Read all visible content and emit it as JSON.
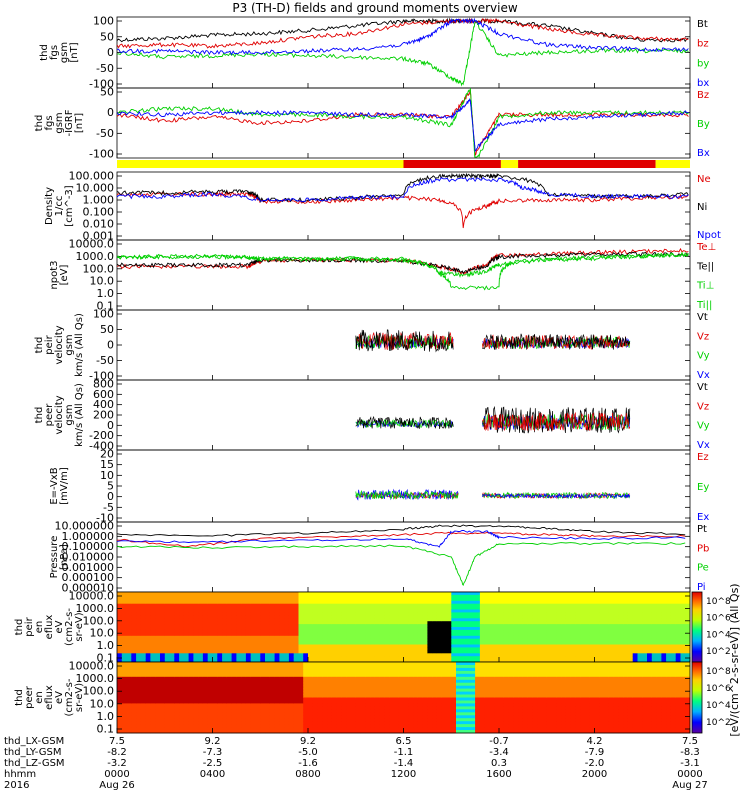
{
  "title": "P3 (TH-D) fields and ground moments overview",
  "colors": {
    "black": "#000000",
    "red": "#e00000",
    "green": "#00d000",
    "blue": "#0000ff"
  },
  "mode_bar": [
    {
      "from": 0,
      "to": 0.5,
      "color": "yellow"
    },
    {
      "from": 0.5,
      "to": 0.67,
      "color": "red"
    },
    {
      "from": 0.67,
      "to": 0.7,
      "color": "yellow"
    },
    {
      "from": 0.7,
      "to": 0.94,
      "color": "red"
    },
    {
      "from": 0.94,
      "to": 1.0,
      "color": "yellow"
    }
  ],
  "panels": [
    {
      "key": "fgs",
      "ylabel": [
        "thd",
        "fgs",
        "gsm",
        "[nT]"
      ],
      "ticks": [
        "100",
        "50",
        "0",
        "-50",
        "-100"
      ],
      "ticklog": false,
      "legend": [
        {
          "text": "Bt",
          "color": "#000000"
        },
        {
          "text": "bz",
          "color": "#e00000"
        },
        {
          "text": "by",
          "color": "#00d000"
        },
        {
          "text": "bx",
          "color": "#0000ff"
        }
      ]
    },
    {
      "key": "fgs_dsl",
      "ylabel": [
        "thd",
        "fgs",
        "gsm",
        "-IGRF",
        "[nT]"
      ],
      "ticks": [
        "50",
        "0",
        "-50",
        "-100"
      ],
      "ticklog": false,
      "legend": [
        {
          "text": "Bz",
          "color": "#e00000"
        },
        {
          "text": "By",
          "color": "#00d000"
        },
        {
          "text": "Bx",
          "color": "#0000ff"
        }
      ]
    },
    {
      "key": "density",
      "ylabel": [
        "Density",
        "1/cc",
        "[cm^-3]"
      ],
      "ticks": [
        "100.000",
        "10.000",
        "1.000",
        "0.100",
        "0.010",
        "0.001"
      ],
      "ticklog": true,
      "legend": [
        {
          "text": "Ne",
          "color": "#e00000"
        },
        {
          "text": "Ni",
          "color": "#000000"
        },
        {
          "text": "Npot",
          "color": "#0000ff"
        }
      ]
    },
    {
      "key": "temp",
      "ylabel": [
        "npot3",
        "[eV]"
      ],
      "ticks": [
        "10000.0",
        "1000.0",
        "100.0",
        "10.0",
        "1.0",
        "0.1"
      ],
      "ticklog": true,
      "legend": [
        {
          "text": "Te⊥",
          "color": "#e00000"
        },
        {
          "text": "Te||",
          "color": "#000000"
        },
        {
          "text": "Ti⊥",
          "color": "#00d000"
        },
        {
          "text": "Ti||",
          "color": "#00d000"
        }
      ]
    },
    {
      "key": "peir",
      "ylabel": [
        "thd",
        "peir",
        "velocity",
        "gsm",
        "km/s (All Qs)"
      ],
      "ticks": [
        "100",
        "50",
        "0",
        "-50",
        "-100"
      ],
      "ticklog": false,
      "legend": [
        {
          "text": "Vt",
          "color": "#000000"
        },
        {
          "text": "Vz",
          "color": "#e00000"
        },
        {
          "text": "Vy",
          "color": "#00d000"
        },
        {
          "text": "Vx",
          "color": "#0000ff"
        }
      ]
    },
    {
      "key": "peer",
      "ylabel": [
        "thd",
        "peer",
        "velocity",
        "gsm",
        "km/s (All Qs)"
      ],
      "ticks": [
        "800",
        "600",
        "400",
        "200",
        "0",
        "-200",
        "-400"
      ],
      "ticklog": false,
      "legend": [
        {
          "text": "Vt",
          "color": "#000000"
        },
        {
          "text": "Vz",
          "color": "#e00000"
        },
        {
          "text": "Vy",
          "color": "#00d000"
        },
        {
          "text": "Vx",
          "color": "#0000ff"
        }
      ]
    },
    {
      "key": "efield",
      "ylabel": [
        "E=-VxB",
        "[mV/m]"
      ],
      "ticks": [
        "20",
        "15",
        "10",
        "5",
        "0",
        "-5",
        "-10"
      ],
      "ticklog": false,
      "legend": [
        {
          "text": "Ez",
          "color": "#e00000"
        },
        {
          "text": "Ey",
          "color": "#00d000"
        },
        {
          "text": "Ex",
          "color": "#0000ff"
        }
      ]
    },
    {
      "key": "pressure",
      "ylabel": [
        "Pressure",
        "[nPa]"
      ],
      "ticks": [
        "10.000000",
        "1.000000",
        "0.100000",
        "0.010000",
        "0.001000",
        "0.000100",
        "0.000010"
      ],
      "ticklog": true,
      "legend": [
        {
          "text": "Pt",
          "color": "#000000"
        },
        {
          "text": "Pb",
          "color": "#e00000"
        },
        {
          "text": "Pe",
          "color": "#00d000"
        },
        {
          "text": "Pi",
          "color": "#0000ff"
        }
      ]
    },
    {
      "key": "peir_spec",
      "ylabel": [
        "thd",
        "peir",
        "en",
        "eflux",
        "eV",
        "(cm2-s-",
        "sr-eV)"
      ],
      "ticks": [
        "10000.0",
        "1000.0",
        "100.0",
        "10.0",
        "1.0",
        "0.1"
      ],
      "ticklog": true,
      "spectrogram": true,
      "colorbar_ticks": [
        "10^8",
        "10^6",
        "10^4",
        "10^2"
      ]
    },
    {
      "key": "peer_spec",
      "ylabel": [
        "thd",
        "peer",
        "en",
        "eflux",
        "eV",
        "(cm2-s-",
        "sr-eV)"
      ],
      "ticks": [
        "10000.0",
        "1000.0",
        "100.0",
        "10.0",
        "1.0",
        "0.1"
      ],
      "ticklog": true,
      "spectrogram": true,
      "colorbar_ticks": [
        "10^8",
        "10^6",
        "10^4",
        "10^2"
      ]
    }
  ],
  "colorbar_label": "[eV/(cm^2-s-sr-eV)] (All Qs)",
  "xaxis": {
    "row_labels": [
      "thd_LX-GSM",
      "thd_LY-GSM",
      "thd_LZ-GSM",
      "hhmm",
      "2016"
    ],
    "columns": [
      {
        "lx": "7.5",
        "ly": "-8.2",
        "lz": "-3.2",
        "hhmm": "0000",
        "date": "Aug 26"
      },
      {
        "lx": "9.2",
        "ly": "-7.3",
        "lz": "-2.5",
        "hhmm": "0400",
        "date": ""
      },
      {
        "lx": "9.2",
        "ly": "-5.0",
        "lz": "-1.6",
        "hhmm": "0800",
        "date": ""
      },
      {
        "lx": "6.5",
        "ly": "-1.1",
        "lz": "-1.4",
        "hhmm": "1200",
        "date": ""
      },
      {
        "lx": "-0.7",
        "ly": "-3.4",
        "lz": "0.3",
        "hhmm": "1600",
        "date": ""
      },
      {
        "lx": "4.2",
        "ly": "-7.9",
        "lz": "-2.0",
        "hhmm": "2000",
        "date": ""
      },
      {
        "lx": "7.5",
        "ly": "-8.3",
        "lz": "-3.1",
        "hhmm": "0000",
        "date": "Aug 27"
      }
    ]
  },
  "chart_data": {
    "type": "line",
    "title": "P3 (TH-D) fields and ground moments overview",
    "x_hours": [
      0,
      4,
      8,
      12,
      16,
      20,
      24
    ],
    "x_tick_labels": [
      "0000",
      "0400",
      "0800",
      "1200",
      "1600",
      "2000",
      "0000"
    ],
    "series": [
      {
        "name": "Bt",
        "panel": "fgs",
        "x": [
          0,
          2,
          4,
          6,
          8,
          10,
          12,
          13,
          14,
          14.3,
          15,
          16,
          18,
          20,
          22,
          24
        ],
        "values": [
          40,
          45,
          55,
          60,
          70,
          85,
          100,
          100,
          100,
          100,
          100,
          100,
          85,
          60,
          40,
          40
        ]
      },
      {
        "name": "bz",
        "panel": "fgs",
        "x": [
          0,
          2,
          4,
          6,
          8,
          10,
          12,
          14,
          15,
          16,
          18,
          20,
          22,
          24
        ],
        "values": [
          20,
          25,
          20,
          30,
          50,
          60,
          90,
          100,
          100,
          100,
          75,
          55,
          45,
          40
        ]
      },
      {
        "name": "by",
        "panel": "fgs",
        "x": [
          0,
          2,
          4,
          6,
          8,
          10,
          12,
          13,
          14,
          14.5,
          15,
          16,
          18,
          20,
          22,
          24
        ],
        "values": [
          0,
          -15,
          -10,
          -5,
          -10,
          -15,
          -20,
          -35,
          -80,
          -100,
          100,
          -10,
          0,
          5,
          5,
          5
        ]
      },
      {
        "name": "bx",
        "panel": "fgs",
        "x": [
          0,
          2,
          4,
          6,
          8,
          10,
          12,
          13,
          14,
          15,
          16,
          18,
          20,
          22,
          24
        ],
        "values": [
          5,
          5,
          0,
          0,
          5,
          10,
          25,
          50,
          100,
          100,
          60,
          25,
          15,
          10,
          10
        ]
      },
      {
        "name": "Bz",
        "panel": "fgs_dsl",
        "x": [
          0,
          2,
          4,
          6,
          8,
          10,
          12,
          14,
          14.8,
          15,
          16,
          18,
          20,
          22,
          24
        ],
        "values": [
          -5,
          -20,
          -10,
          -25,
          -20,
          -5,
          -5,
          -10,
          50,
          -100,
          -5,
          -5,
          -5,
          -5,
          -5
        ]
      },
      {
        "name": "By",
        "panel": "fgs_dsl",
        "x": [
          0,
          2,
          4,
          6,
          8,
          10,
          12,
          14,
          14.8,
          15,
          16,
          18,
          20,
          22,
          24
        ],
        "values": [
          0,
          10,
          10,
          -5,
          -5,
          -10,
          -10,
          -30,
          60,
          -120,
          -10,
          0,
          0,
          0,
          0
        ]
      },
      {
        "name": "Bx",
        "panel": "fgs_dsl",
        "x": [
          0,
          2,
          4,
          6,
          8,
          10,
          12,
          14,
          14.8,
          15,
          16,
          18,
          20,
          22,
          24
        ],
        "values": [
          0,
          -5,
          0,
          0,
          0,
          -5,
          -5,
          -10,
          30,
          -90,
          -30,
          -15,
          -10,
          -5,
          0
        ]
      },
      {
        "name": "Ne",
        "panel": "density",
        "x": [
          0,
          2,
          4,
          5.5,
          6,
          8,
          10,
          12,
          13.5,
          14.5,
          15.5,
          16,
          18,
          20,
          22,
          24
        ],
        "values": [
          3,
          3,
          3,
          3,
          0.8,
          0.7,
          1,
          1.5,
          1,
          0.005,
          0.3,
          0.8,
          1,
          1,
          1.5,
          2
        ]
      },
      {
        "name": "Ni",
        "panel": "density",
        "x": [
          0,
          2,
          4,
          5.5,
          6,
          8,
          10,
          12,
          13.5,
          14.5,
          15.5,
          16,
          18,
          20,
          22,
          24
        ],
        "values": [
          4,
          4,
          5,
          5,
          1,
          1,
          1.5,
          3,
          100,
          100,
          100,
          100,
          3,
          2,
          2,
          3
        ]
      },
      {
        "name": "Npot",
        "panel": "density",
        "x": [
          0,
          2,
          4,
          6,
          8,
          10,
          12,
          13.5,
          16,
          17,
          18,
          20,
          22,
          24
        ],
        "values": [
          2,
          2,
          3,
          1,
          1,
          1.5,
          2,
          50,
          50,
          10,
          3,
          2,
          2,
          2
        ]
      },
      {
        "name": "Te⊥",
        "panel": "temp",
        "x": [
          0,
          2,
          4,
          5.5,
          6,
          8,
          10,
          12,
          13.5,
          14.5,
          15.5,
          16,
          18,
          20,
          22,
          24
        ],
        "values": [
          150,
          150,
          150,
          150,
          400,
          500,
          500,
          450,
          150,
          40,
          200,
          1200,
          1500,
          2000,
          2500,
          3000
        ]
      },
      {
        "name": "Te||",
        "panel": "temp",
        "x": [
          0,
          2,
          4,
          5.5,
          6,
          8,
          10,
          12,
          13.5,
          14.5,
          15.5,
          16,
          18,
          20,
          22,
          24
        ],
        "values": [
          200,
          200,
          200,
          200,
          500,
          500,
          500,
          400,
          150,
          50,
          150,
          900,
          1200,
          1500,
          1500,
          1500
        ]
      },
      {
        "name": "Ti⊥",
        "panel": "temp",
        "x": [
          0,
          2,
          4,
          5.5,
          6,
          8,
          10,
          12,
          13.5,
          14.5,
          15.5,
          16,
          18,
          20,
          22,
          24
        ],
        "values": [
          800,
          900,
          900,
          900,
          600,
          600,
          600,
          500,
          50,
          30,
          60,
          200,
          500,
          700,
          1000,
          1500
        ]
      },
      {
        "name": "Ti||",
        "panel": "temp",
        "x": [
          0,
          2,
          4,
          6,
          8,
          10,
          12,
          13.5,
          14,
          16,
          16.5,
          18,
          20,
          22,
          24
        ],
        "values": [
          900,
          1000,
          1000,
          700,
          700,
          700,
          600,
          40,
          3,
          3,
          300,
          600,
          800,
          1000,
          1500
        ]
      }
    ],
    "ylabel_groups": [
      "fgs",
      "fgs_dsl",
      "density",
      "temp",
      "peir",
      "peer",
      "efield",
      "pressure",
      "peir_spec",
      "peer_spec"
    ],
    "date_labels": [
      "Aug 26",
      "Aug 27"
    ],
    "year": "2016"
  }
}
